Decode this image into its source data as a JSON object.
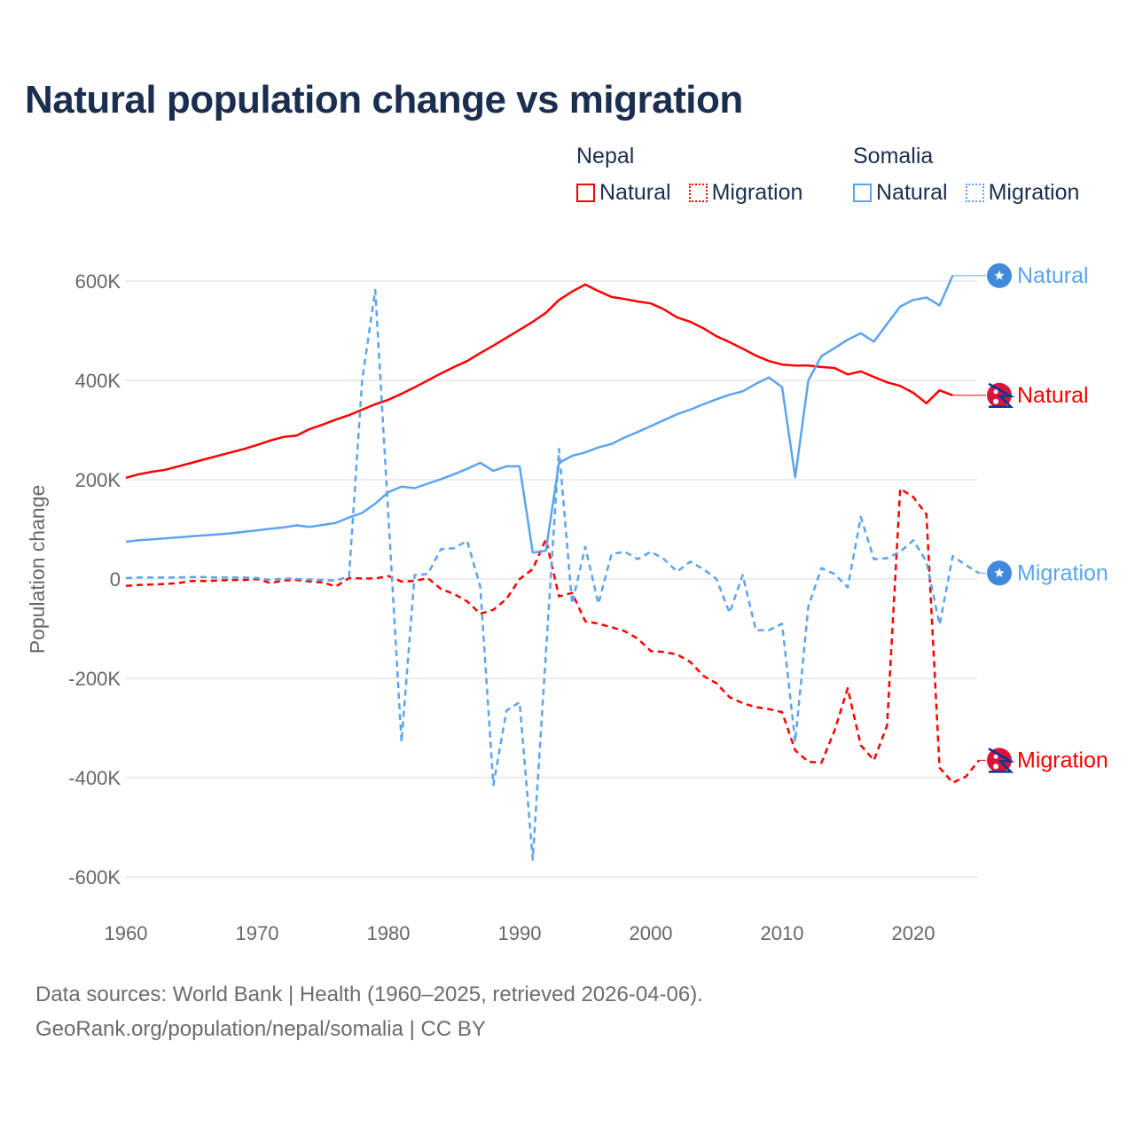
{
  "chart_data": {
    "type": "line",
    "title": "Natural population change vs migration",
    "xlabel": "",
    "ylabel": "Population change",
    "xlim": [
      1960,
      2025
    ],
    "ylim": [
      -600000,
      600000
    ],
    "x_ticks": [
      1960,
      1970,
      1980,
      1990,
      2000,
      2010,
      2020
    ],
    "x_tick_labels": [
      "1960",
      "1970",
      "1980",
      "1990",
      "2000",
      "2010",
      "2020"
    ],
    "y_ticks": [
      600000,
      400000,
      200000,
      0,
      -200000,
      -400000,
      -600000
    ],
    "y_tick_labels": [
      "600K",
      "400K",
      "200K",
      "0",
      "-200K",
      "-400K",
      "-600K"
    ],
    "grid": true,
    "legend_placement": "top-right",
    "legend_groups": [
      {
        "country": "Nepal",
        "items": [
          "Natural",
          "Migration"
        ]
      },
      {
        "country": "Somalia",
        "items": [
          "Natural",
          "Migration"
        ]
      }
    ],
    "series": [
      {
        "name": "Natural",
        "country": "Nepal",
        "color": "#ff0000",
        "dash": false,
        "flag": "nepal-flag",
        "x_start": 1960,
        "values": [
          204,
          211,
          216,
          220,
          227,
          234,
          241,
          248,
          255,
          262,
          270,
          279,
          286,
          289,
          302,
          311,
          321,
          330,
          341,
          352,
          361,
          373,
          386,
          400,
          414,
          427,
          439,
          455,
          470,
          486,
          502,
          518,
          536,
          562,
          579,
          593,
          580,
          568,
          564,
          559,
          555,
          543,
          527,
          518,
          505,
          489,
          477,
          464,
          450,
          439,
          432,
          430,
          430,
          427,
          425,
          412,
          418,
          407,
          396,
          389,
          375,
          354,
          380,
          370
        ]
      },
      {
        "name": "Migration",
        "country": "Nepal",
        "color": "#ff0000",
        "dash": true,
        "flag": "nepal-flag",
        "x_start": 1960,
        "values": [
          -14,
          -12,
          -11,
          -10,
          -8,
          -4,
          -4,
          -3,
          -2,
          -2,
          0,
          -8,
          -3,
          -2,
          -5,
          -7,
          -15,
          2,
          1,
          1,
          6,
          -5,
          -4,
          2,
          -20,
          -30,
          -45,
          -70,
          -62,
          -40,
          0,
          20,
          80,
          -35,
          -28,
          -85,
          -90,
          -97,
          -105,
          -120,
          -145,
          -147,
          -152,
          -167,
          -195,
          -210,
          -238,
          -250,
          -258,
          -262,
          -268,
          -345,
          -368,
          -370,
          -305,
          -220,
          -335,
          -365,
          -295,
          182,
          165,
          130,
          -380,
          -410,
          -398,
          -365
        ]
      },
      {
        "name": "Natural",
        "country": "Somalia",
        "color": "#5ba4ef",
        "dash": false,
        "flag": "somalia-flag",
        "x_start": 1960,
        "values": [
          75,
          78,
          80,
          82,
          84,
          86,
          88,
          90,
          92,
          95,
          98,
          101,
          104,
          108,
          105,
          109,
          113,
          124,
          133,
          152,
          175,
          186,
          183,
          192,
          201,
          211,
          222,
          234,
          218,
          227,
          227,
          53,
          57,
          234,
          248,
          255,
          265,
          272,
          285,
          296,
          308,
          320,
          332,
          341,
          352,
          362,
          371,
          378,
          393,
          406,
          386,
          205,
          400,
          449,
          465,
          482,
          495,
          478,
          514,
          549,
          562,
          567,
          551,
          611
        ]
      },
      {
        "name": "Migration",
        "country": "Somalia",
        "color": "#5ba4ef",
        "dash": true,
        "flag": "somalia-flag",
        "x_start": 1960,
        "values": [
          2,
          3,
          3,
          3,
          3,
          4,
          4,
          3,
          3,
          3,
          2,
          -2,
          1,
          0,
          -1,
          -2,
          -3,
          5,
          400,
          582,
          127,
          -328,
          8,
          10,
          60,
          62,
          77,
          -15,
          -415,
          -265,
          -248,
          -565,
          -150,
          262,
          -50,
          65,
          -50,
          50,
          55,
          40,
          55,
          40,
          15,
          35,
          20,
          0,
          -68,
          8,
          -103,
          -103,
          -90,
          -328,
          -55,
          22,
          10,
          -17,
          125,
          40,
          42,
          55,
          78,
          35,
          -92,
          46,
          28,
          12
        ]
      }
    ],
    "value_unit": "thousands"
  },
  "footer": {
    "line1": "Data sources: World Bank | Health (1960–2025, retrieved 2026-04-06).",
    "line2": "GeoRank.org/population/nepal/somalia | CC BY"
  }
}
